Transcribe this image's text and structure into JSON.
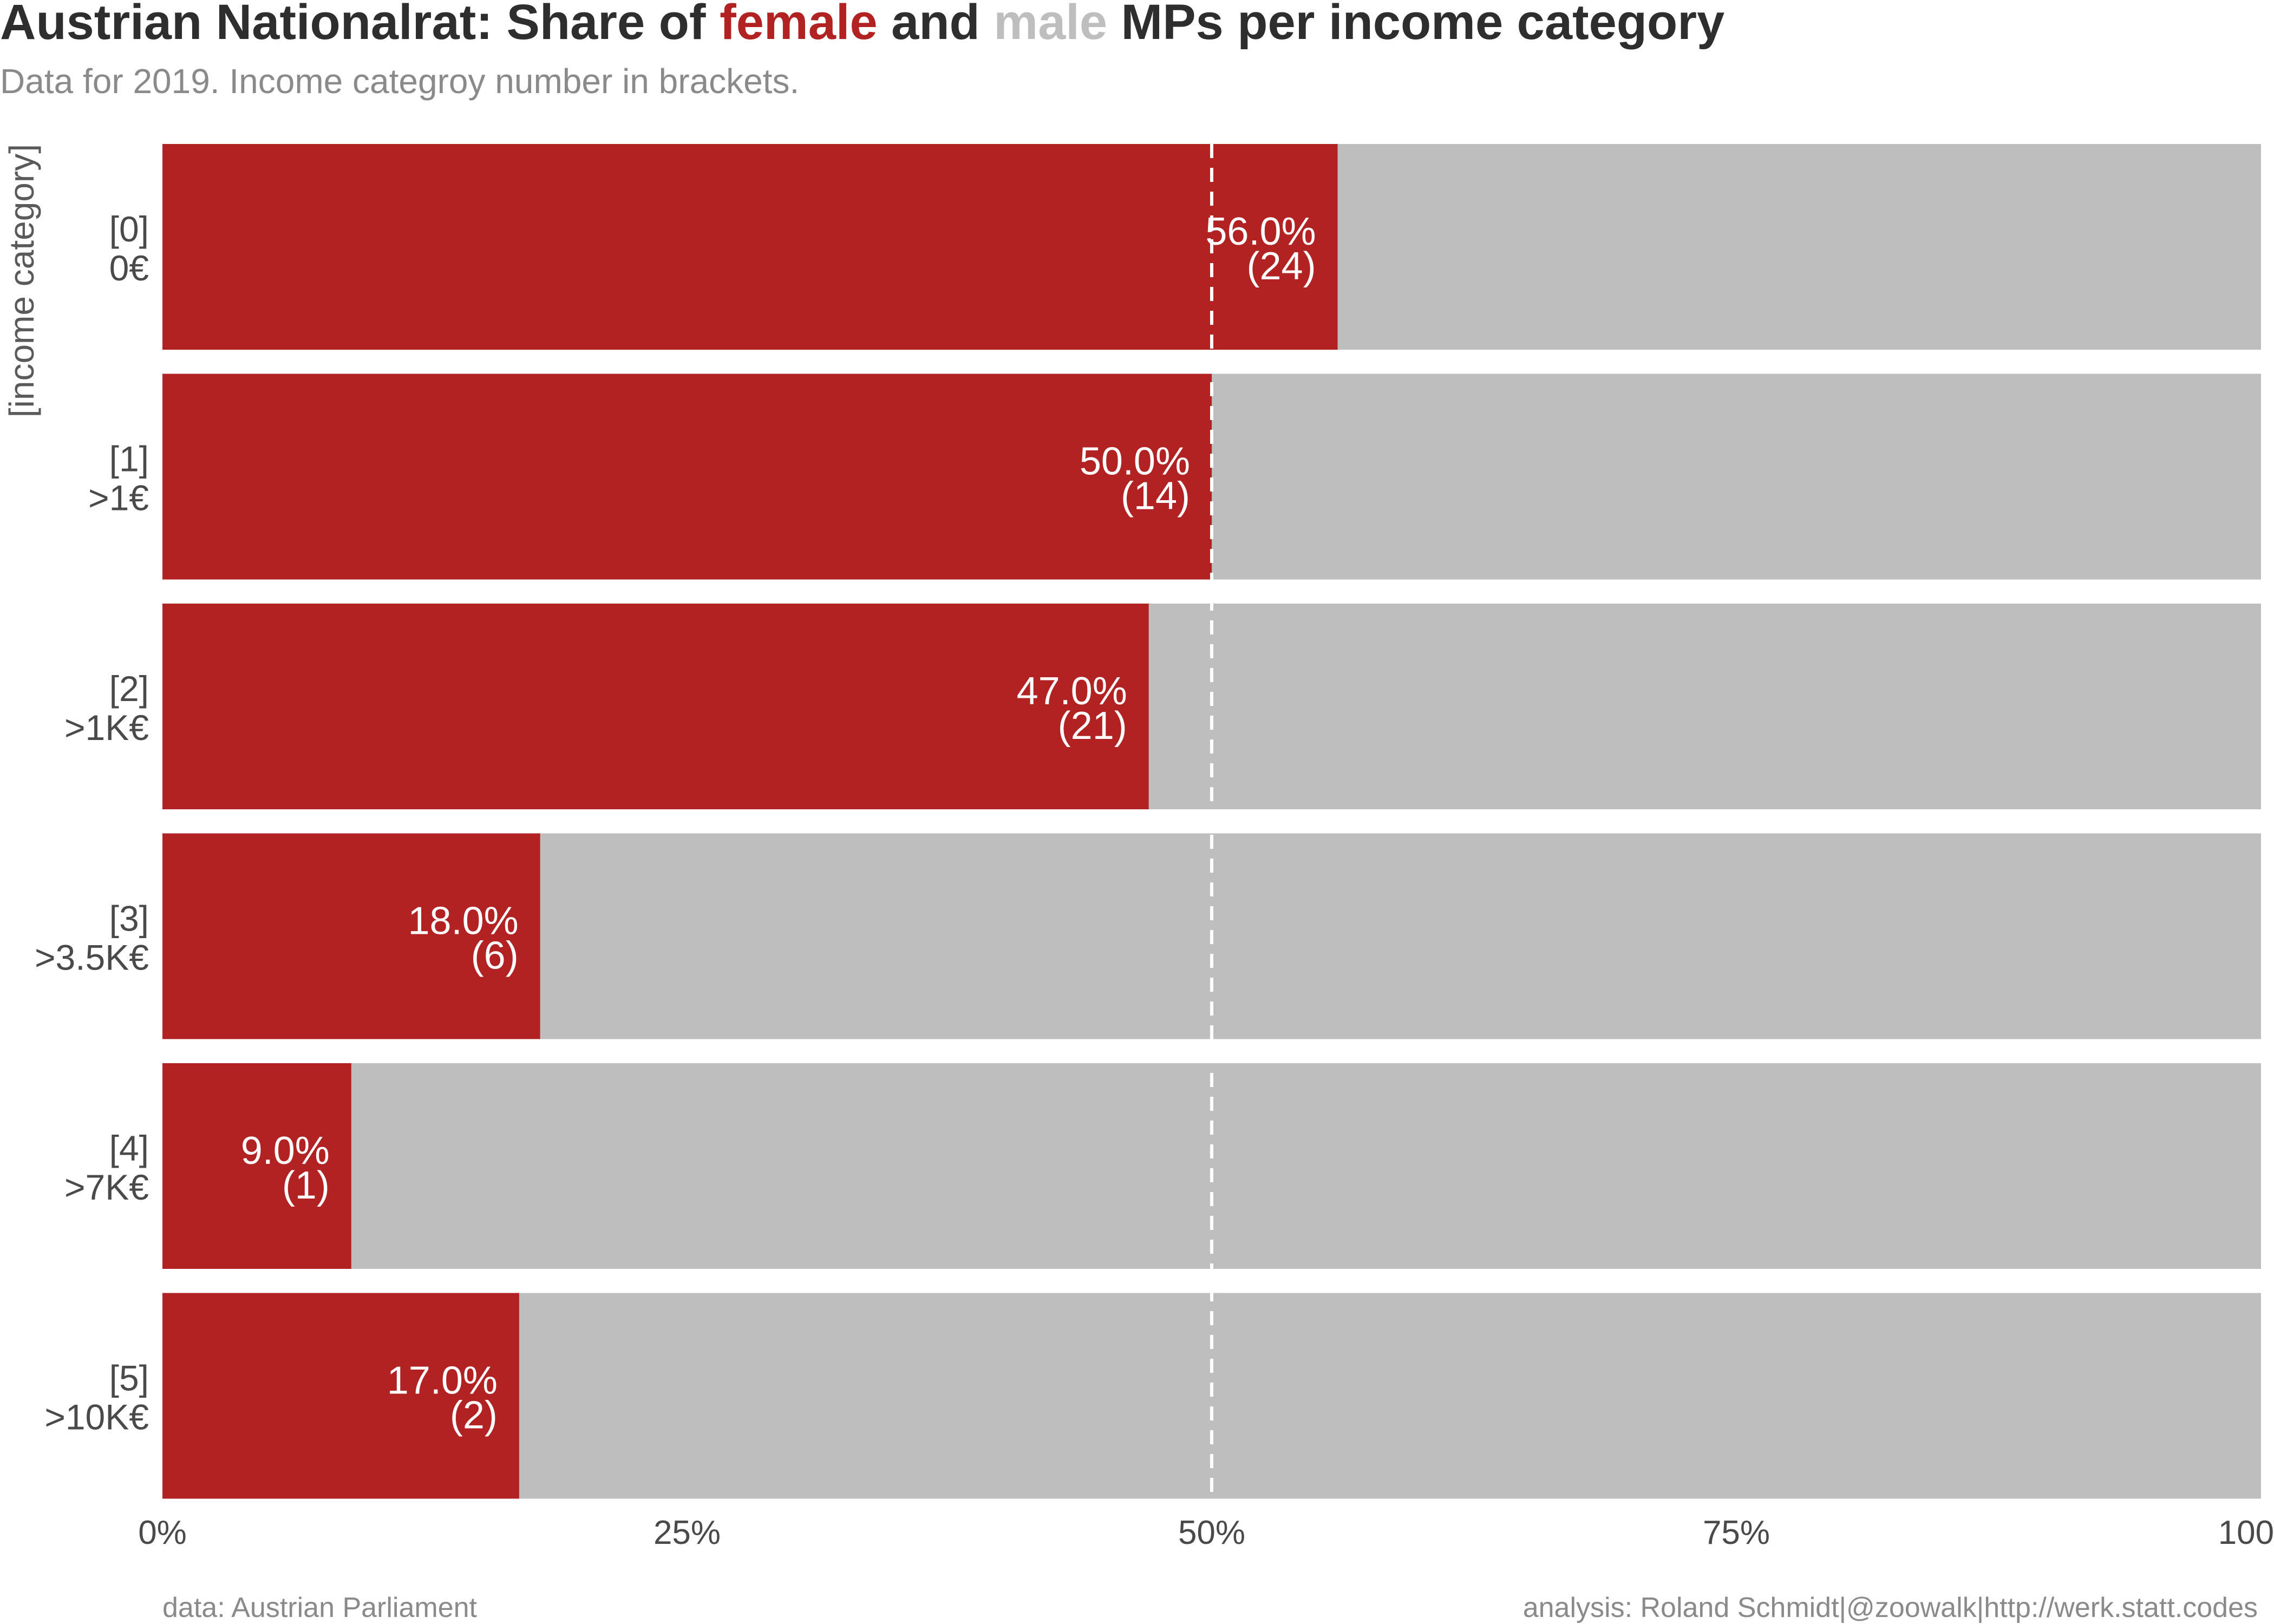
{
  "title": {
    "prefix": "Austrian Nationalrat: Share of ",
    "female_word": "female",
    "middle": " and ",
    "male_word": "male",
    "suffix": " MPs per income category"
  },
  "subtitle": "Data for 2019. Income categroy number in brackets.",
  "colors": {
    "female": "#b22222",
    "male": "#bebebe",
    "text_dark": "#2e2e2e",
    "text_muted": "#8a8a8a",
    "reference_line": "#ffffff"
  },
  "caption": {
    "left": "data: Austrian Parliament",
    "right": "analysis: Roland Schmidt|@zoowalk|http://werk.statt.codes"
  },
  "chart_data": {
    "type": "bar",
    "orientation": "horizontal",
    "stacked": true,
    "y_axis_title": "[income category]",
    "categories": [
      {
        "code": "[0]",
        "label": "0€"
      },
      {
        "code": "[1]",
        "label": ">1€"
      },
      {
        "code": "[2]",
        "label": ">1K€"
      },
      {
        "code": "[3]",
        "label": ">3.5K€"
      },
      {
        "code": "[4]",
        "label": ">7K€"
      },
      {
        "code": "[5]",
        "label": ">10K€"
      }
    ],
    "series": [
      {
        "name": "female",
        "values": [
          0.56,
          0.5,
          0.47,
          0.18,
          0.09,
          0.17
        ],
        "percent_labels": [
          "56.0%",
          "50.0%",
          "47.0%",
          "18.0%",
          "9.0%",
          "17.0%"
        ],
        "counts": [
          "(24)",
          "(14)",
          "(21)",
          "(6)",
          "(1)",
          "(2)"
        ]
      },
      {
        "name": "male",
        "values": [
          0.44,
          0.5,
          0.53,
          0.82,
          0.91,
          0.83
        ]
      }
    ],
    "x_ticks": [
      {
        "value": 0,
        "label": "0%"
      },
      {
        "value": 0.25,
        "label": "25%"
      },
      {
        "value": 0.5,
        "label": "50%"
      },
      {
        "value": 0.75,
        "label": "75%"
      },
      {
        "value": 1,
        "label": "100%"
      }
    ],
    "xlim": [
      0,
      1
    ],
    "reference_line": {
      "value": 0.5,
      "style": "dashed"
    },
    "grid": false,
    "legend": "none (colored words in title)"
  }
}
